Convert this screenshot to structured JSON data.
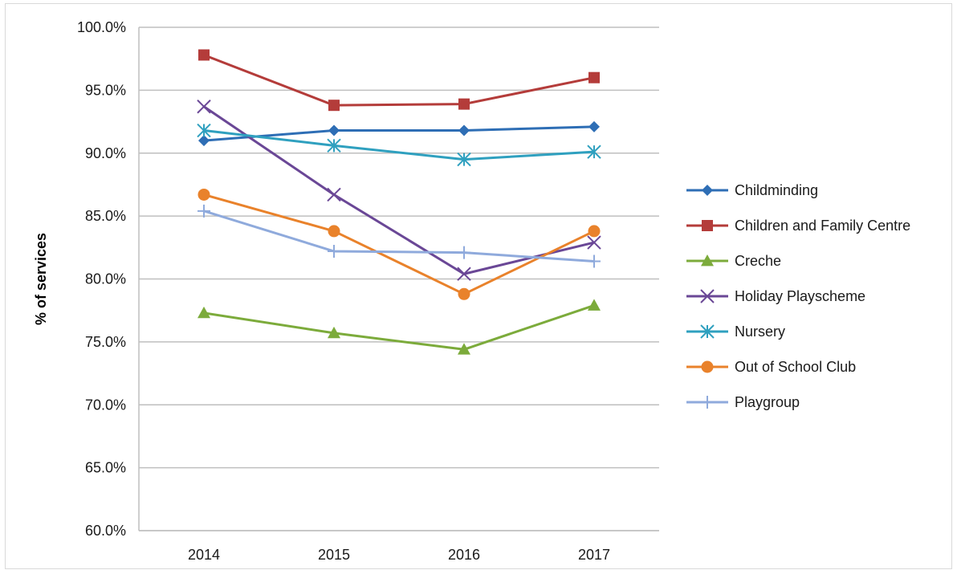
{
  "chart_data": {
    "type": "line",
    "title": "",
    "xlabel": "",
    "ylabel": "% of services",
    "x": [
      "2014",
      "2015",
      "2016",
      "2017"
    ],
    "ylim": [
      60.0,
      100.0
    ],
    "ytick_step": 5.0,
    "yticks": [
      "60.0%",
      "65.0%",
      "70.0%",
      "75.0%",
      "80.0%",
      "85.0%",
      "90.0%",
      "95.0%",
      "100.0%"
    ],
    "grid": "horizontal",
    "legend_position": "right",
    "series": [
      {
        "name": "Childminding",
        "values": [
          91.0,
          91.8,
          91.8,
          92.1
        ],
        "color": "#2e6eb5",
        "marker": "diamond"
      },
      {
        "name": "Children and Family Centre",
        "values": [
          97.8,
          93.8,
          93.9,
          96.0
        ],
        "color": "#b43c3a",
        "marker": "square"
      },
      {
        "name": "Creche",
        "values": [
          77.3,
          75.7,
          74.4,
          77.9
        ],
        "color": "#7cab3b",
        "marker": "triangle"
      },
      {
        "name": "Holiday Playscheme",
        "values": [
          93.7,
          86.7,
          80.4,
          82.9
        ],
        "color": "#6a4796",
        "marker": "x"
      },
      {
        "name": "Nursery",
        "values": [
          91.8,
          90.6,
          89.5,
          90.1
        ],
        "color": "#2fa0bf",
        "marker": "asterisk"
      },
      {
        "name": "Out of School Club",
        "values": [
          86.7,
          83.8,
          78.8,
          83.8
        ],
        "color": "#e9822b",
        "marker": "circle"
      },
      {
        "name": "Playgroup",
        "values": [
          85.4,
          82.2,
          82.1,
          81.4
        ],
        "color": "#8faadc",
        "marker": "plus"
      }
    ]
  }
}
